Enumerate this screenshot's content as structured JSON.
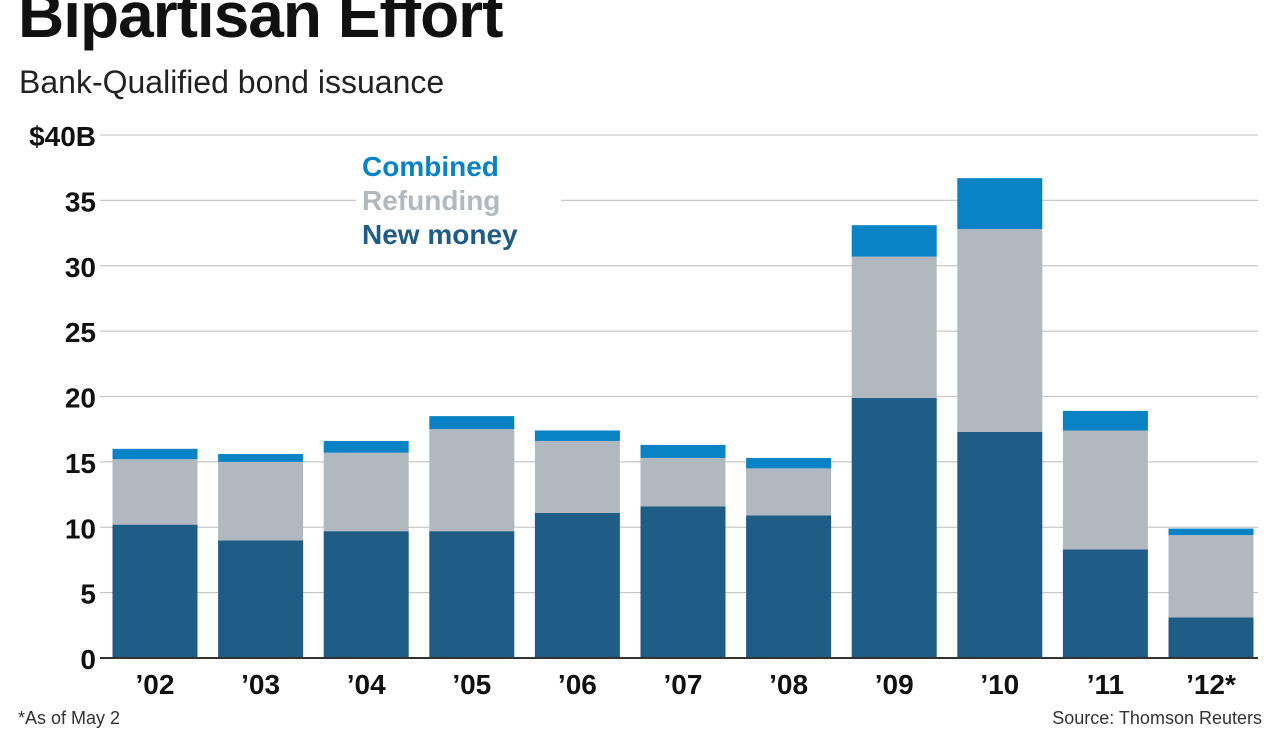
{
  "title": "Bipartisan Effort",
  "subtitle": "Bank-Qualified bond issuance",
  "footnote": "*As of May 2",
  "source": "Source: Thomson Reuters",
  "colors": {
    "new_money": "#1f5c86",
    "refunding": "#b1b8bf",
    "combined": "#0a83c6",
    "legend_new_money": "#1f5c86",
    "legend_refunding": "#b1b8bf",
    "legend_combined": "#0a83c6"
  },
  "chart_data": {
    "type": "bar",
    "stacked": true,
    "title": "Bipartisan Effort",
    "subtitle": "Bank-Qualified bond issuance",
    "xlabel": "",
    "ylabel": "",
    "ylim": [
      0,
      40
    ],
    "y_ticks": [
      0,
      5,
      10,
      15,
      20,
      25,
      30,
      35,
      40
    ],
    "y_tick_labels": [
      "0",
      "5",
      "10",
      "15",
      "20",
      "25",
      "30",
      "35",
      "$40B"
    ],
    "categories": [
      "’02",
      "’03",
      "’04",
      "’05",
      "’06",
      "’07",
      "’08",
      "’09",
      "’10",
      "’11",
      "’12*"
    ],
    "series": [
      {
        "name": "New money",
        "values": [
          10.2,
          9.0,
          9.7,
          9.7,
          11.1,
          11.6,
          10.9,
          19.9,
          17.3,
          8.3,
          3.1
        ]
      },
      {
        "name": "Refunding",
        "values": [
          5.0,
          6.0,
          6.0,
          7.8,
          5.5,
          3.7,
          3.6,
          10.8,
          15.5,
          9.1,
          6.3
        ]
      },
      {
        "name": "Combined",
        "values": [
          0.8,
          0.6,
          0.9,
          1.0,
          0.8,
          1.0,
          0.8,
          2.4,
          3.9,
          1.5,
          0.5
        ]
      }
    ],
    "legend": [
      "Combined",
      "Refunding",
      "New money"
    ],
    "legend_placement": "top-left",
    "grid": true
  }
}
